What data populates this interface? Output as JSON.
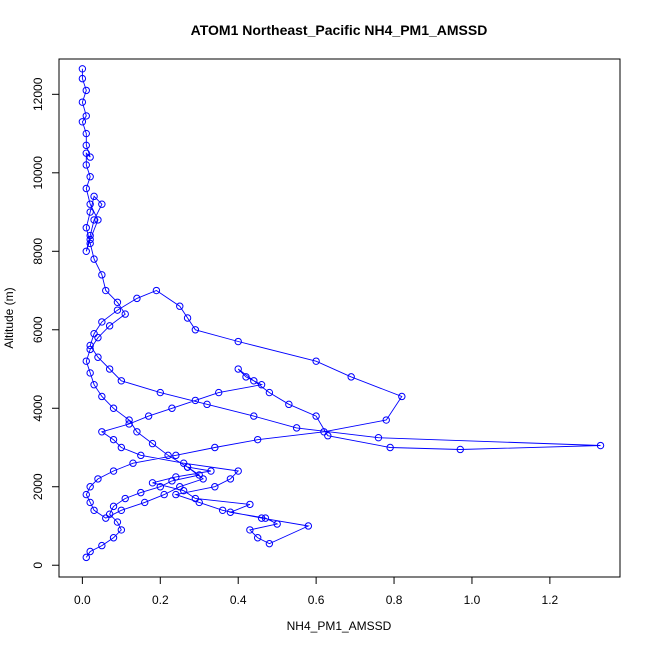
{
  "chart_data": {
    "type": "line",
    "title": "ATOM1 Northeast_Pacific NH4_PM1_AMSSD",
    "xlabel": "NH4_PM1_AMSSD",
    "ylabel": "Altitude (m)",
    "xlim": [
      -0.06,
      1.38
    ],
    "ylim": [
      -300,
      12900
    ],
    "x_ticks": [
      0.0,
      0.2,
      0.4,
      0.6,
      0.8,
      1.0,
      1.2
    ],
    "x_tick_labels": [
      "0.0",
      "0.2",
      "0.4",
      "0.6",
      "0.8",
      "1.0",
      "1.2"
    ],
    "y_ticks": [
      0,
      2000,
      4000,
      6000,
      8000,
      10000,
      12000
    ],
    "y_tick_labels": [
      "0",
      "2000",
      "4000",
      "6000",
      "8000",
      "10000",
      "12000"
    ],
    "grid": false,
    "legend": "none",
    "series_color": "#0000ff",
    "series": [
      {
        "x": [
          0.01,
          0.02,
          0.05,
          0.08,
          0.1,
          0.09,
          0.07,
          0.08,
          0.11,
          0.15,
          0.2,
          0.23,
          0.3,
          0.27,
          0.33,
          0.24,
          0.18,
          0.26,
          0.29,
          0.43,
          0.38,
          0.47,
          0.5,
          0.43,
          0.45,
          0.48,
          0.58,
          0.46,
          0.36,
          0.3,
          0.24,
          0.34,
          0.38,
          0.4,
          0.26,
          0.15,
          0.1,
          0.08,
          0.05,
          0.12,
          0.17,
          0.23,
          0.29,
          0.35,
          0.46,
          0.42,
          0.4,
          0.44,
          0.48,
          0.53,
          0.6,
          0.63,
          0.79,
          0.97,
          1.33,
          0.76,
          0.55,
          0.44,
          0.32,
          0.2,
          0.1,
          0.07,
          0.04,
          0.02,
          0.03,
          0.05,
          0.09,
          0.14,
          0.19,
          0.25,
          0.27,
          0.29,
          0.4,
          0.6,
          0.69,
          0.82,
          0.78,
          0.62,
          0.45,
          0.34,
          0.24,
          0.13,
          0.08,
          0.04,
          0.02,
          0.01,
          0.02,
          0.03,
          0.06,
          0.1,
          0.16,
          0.21,
          0.25,
          0.31,
          0.27,
          0.22,
          0.18,
          0.14,
          0.12,
          0.08,
          0.05,
          0.03,
          0.02,
          0.01,
          0.02,
          0.04,
          0.07,
          0.11,
          0.09,
          0.06,
          0.05,
          0.03,
          0.02,
          0.01,
          0.02,
          0.03,
          0.05,
          0.03,
          0.02,
          0.01,
          0.02,
          0.04,
          0.02,
          0.01,
          0.02,
          0.01,
          0.01,
          0.02,
          0.01,
          0.01,
          0.0,
          0.01,
          0.0,
          0.01,
          0.0,
          0.0
        ],
        "y": [
          200,
          350,
          500,
          700,
          900,
          1100,
          1300,
          1500,
          1700,
          1850,
          2000,
          2150,
          2300,
          2500,
          2400,
          2250,
          2100,
          1900,
          1700,
          1550,
          1350,
          1200,
          1050,
          900,
          700,
          550,
          1000,
          1200,
          1400,
          1600,
          1800,
          2000,
          2200,
          2400,
          2600,
          2800,
          3000,
          3200,
          3400,
          3600,
          3800,
          4000,
          4200,
          4400,
          4600,
          4800,
          5000,
          4700,
          4400,
          4100,
          3800,
          3300,
          3000,
          2950,
          3050,
          3250,
          3500,
          3800,
          4100,
          4400,
          4700,
          5000,
          5300,
          5600,
          5900,
          6200,
          6500,
          6800,
          7000,
          6600,
          6300,
          6000,
          5700,
          5200,
          4800,
          4300,
          3700,
          3400,
          3200,
          3000,
          2800,
          2600,
          2400,
          2200,
          2000,
          1800,
          1600,
          1400,
          1200,
          1400,
          1600,
          1800,
          2000,
          2200,
          2500,
          2800,
          3100,
          3400,
          3700,
          4000,
          4300,
          4600,
          4900,
          5200,
          5500,
          5800,
          6100,
          6400,
          6700,
          7000,
          7400,
          7800,
          8200,
          8600,
          9000,
          9400,
          9200,
          8800,
          8400,
          8000,
          8300,
          8800,
          9200,
          9600,
          9900,
          10200,
          10500,
          10400,
          10700,
          11000,
          11300,
          11450,
          11800,
          12100,
          12400,
          12650
        ]
      }
    ]
  }
}
